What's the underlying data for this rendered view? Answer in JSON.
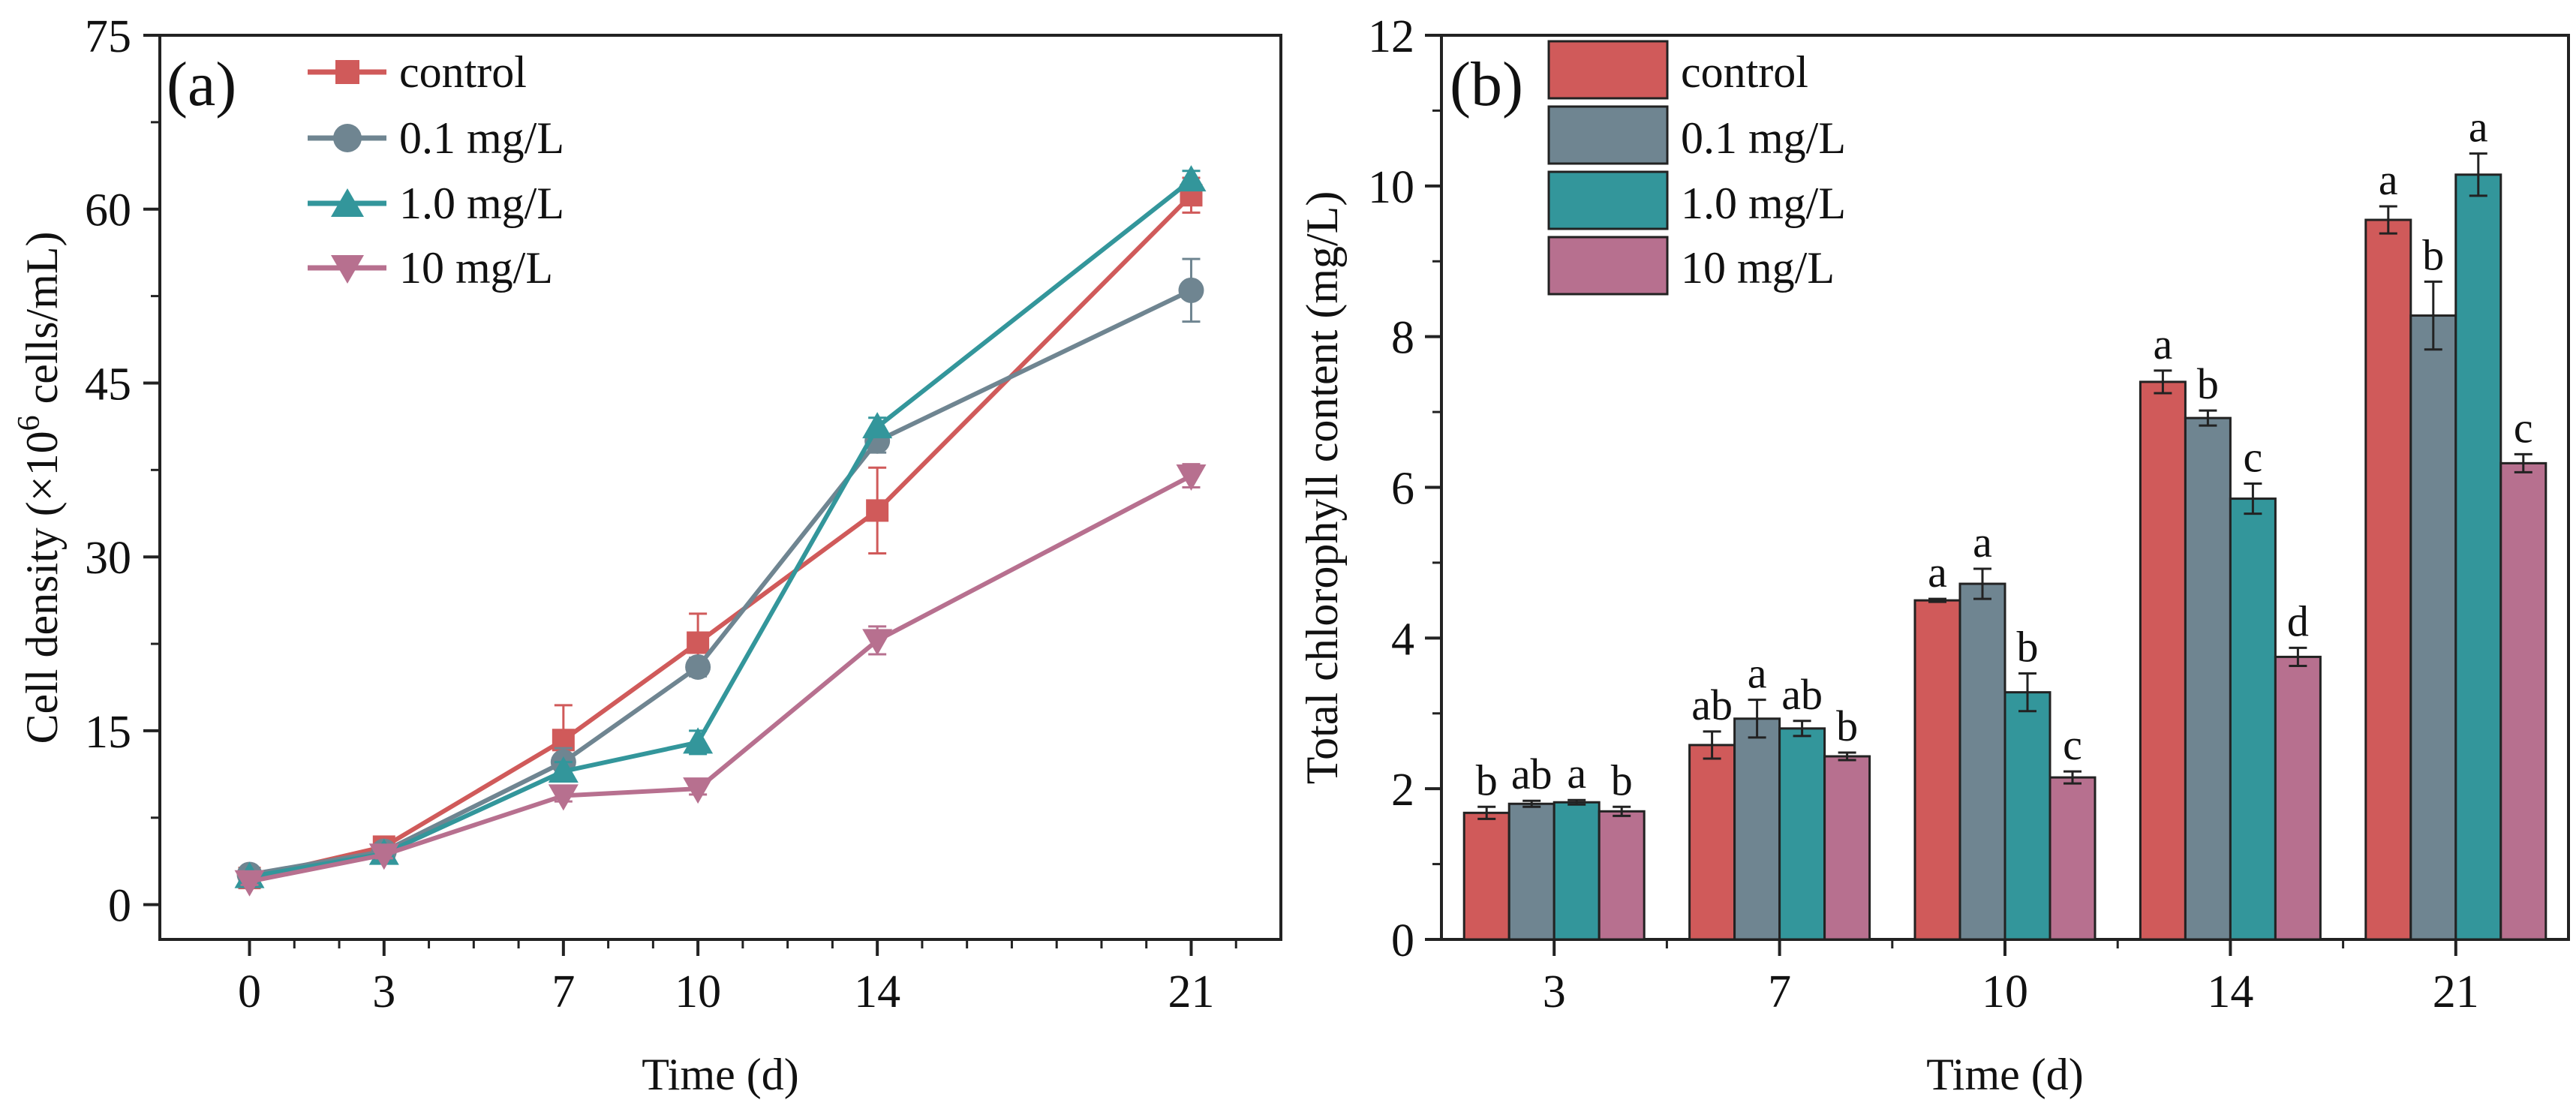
{
  "colors": {
    "control": "#d05a5a",
    "c01": "#6f8591",
    "c10": "#33969b",
    "c100": "#b7708f",
    "axis": "#222222"
  },
  "chart_data": [
    {
      "type": "line",
      "panel_label": "(a)",
      "xlabel": "Time (d)",
      "ylabel": "Cell density (×10",
      "ylabel_sup": "6",
      "ylabel_end": " cells/mL)",
      "x": [
        0,
        3,
        7,
        10,
        14,
        21
      ],
      "xlim": [
        -2,
        23
      ],
      "ylim": [
        -3,
        75
      ],
      "yticks": [
        0,
        15,
        30,
        45,
        60,
        75
      ],
      "xticks": [
        0,
        3,
        7,
        10,
        14,
        21
      ],
      "legend_position": "top-left",
      "series": [
        {
          "name": "control",
          "marker": "square",
          "color_key": "control",
          "values": [
            2.3,
            5.0,
            14.2,
            22.6,
            34.0,
            61.2
          ],
          "errors": [
            0.4,
            0.4,
            3.0,
            2.5,
            3.7,
            1.5
          ]
        },
        {
          "name": "0.1 mg/L",
          "marker": "circle",
          "color_key": "c01",
          "values": [
            2.6,
            4.6,
            12.3,
            20.5,
            40.0,
            53.0
          ],
          "errors": [
            0.3,
            0.4,
            1.2,
            0.8,
            1.0,
            2.7
          ]
        },
        {
          "name": "1.0 mg/L",
          "marker": "triangle-up",
          "color_key": "c10",
          "values": [
            2.4,
            4.4,
            11.5,
            14.0,
            41.2,
            62.5
          ],
          "errors": [
            0.3,
            0.4,
            0.8,
            1.0,
            0.8,
            0.8
          ]
        },
        {
          "name": "10 mg/L",
          "marker": "triangle-down",
          "color_key": "c100",
          "values": [
            2.0,
            4.3,
            9.4,
            10.0,
            22.8,
            37.0
          ],
          "errors": [
            0.3,
            0.3,
            0.5,
            0.5,
            1.2,
            1.0
          ]
        }
      ]
    },
    {
      "type": "bar",
      "panel_label": "(b)",
      "xlabel": "Time (d)",
      "ylabel": "Total chlorophyll content (mg/L)",
      "categories": [
        "3",
        "7",
        "10",
        "14",
        "21"
      ],
      "ylim": [
        0,
        12
      ],
      "yticks": [
        0,
        2,
        4,
        6,
        8,
        10,
        12
      ],
      "legend_position": "top-left",
      "series": [
        {
          "name": "control",
          "color_key": "control",
          "values": [
            1.68,
            2.58,
            4.5,
            7.4,
            9.55
          ],
          "errors": [
            0.08,
            0.18,
            0.02,
            0.15,
            0.18
          ],
          "letters": [
            "b",
            "ab",
            "a",
            "a",
            "a"
          ]
        },
        {
          "name": "0.1 mg/L",
          "color_key": "c01",
          "values": [
            1.8,
            2.93,
            4.72,
            6.92,
            8.28
          ],
          "errors": [
            0.04,
            0.25,
            0.2,
            0.1,
            0.45
          ],
          "letters": [
            "ab",
            "a",
            "a",
            "b",
            "b"
          ]
        },
        {
          "name": "1.0 mg/L",
          "color_key": "c10",
          "values": [
            1.82,
            2.8,
            3.28,
            5.85,
            10.15
          ],
          "errors": [
            0.03,
            0.1,
            0.25,
            0.2,
            0.28
          ],
          "letters": [
            "a",
            "ab",
            "b",
            "c",
            "a"
          ]
        },
        {
          "name": "10 mg/L",
          "color_key": "c100",
          "values": [
            1.7,
            2.43,
            2.15,
            3.75,
            6.32
          ],
          "errors": [
            0.06,
            0.05,
            0.08,
            0.12,
            0.12
          ],
          "letters": [
            "b",
            "b",
            "c",
            "d",
            "c"
          ]
        }
      ]
    }
  ]
}
